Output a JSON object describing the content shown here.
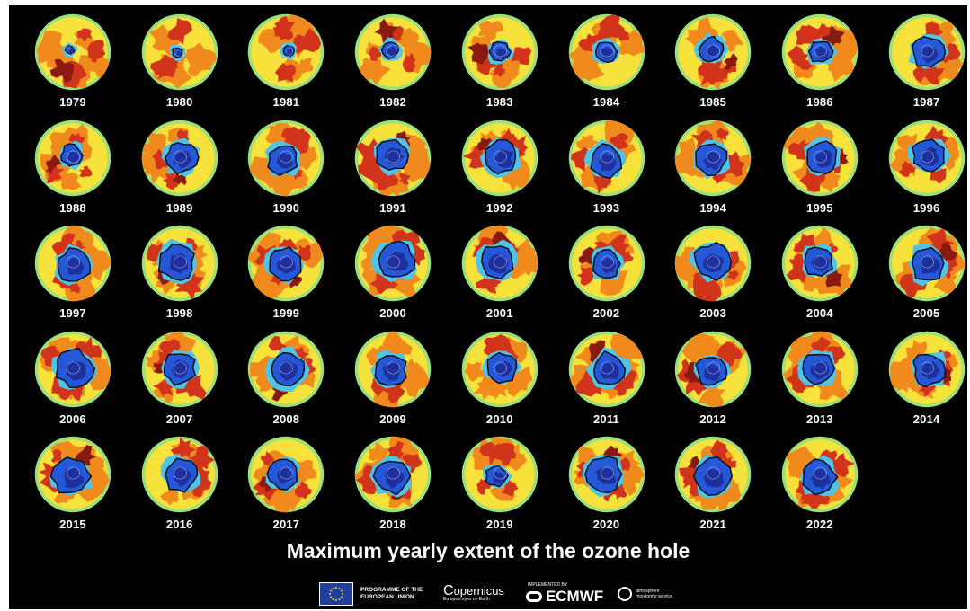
{
  "title": "Maximum yearly extent of the ozone hole",
  "maps": [
    {
      "year": "1979",
      "hole": 0.12
    },
    {
      "year": "1980",
      "hole": 0.14
    },
    {
      "year": "1981",
      "hole": 0.15
    },
    {
      "year": "1982",
      "hole": 0.24
    },
    {
      "year": "1983",
      "hole": 0.28
    },
    {
      "year": "1984",
      "hole": 0.3
    },
    {
      "year": "1985",
      "hole": 0.34
    },
    {
      "year": "1986",
      "hole": 0.32
    },
    {
      "year": "1987",
      "hole": 0.44
    },
    {
      "year": "1988",
      "hole": 0.3
    },
    {
      "year": "1989",
      "hole": 0.44
    },
    {
      "year": "1990",
      "hole": 0.42
    },
    {
      "year": "1991",
      "hole": 0.44
    },
    {
      "year": "1992",
      "hole": 0.46
    },
    {
      "year": "1993",
      "hole": 0.46
    },
    {
      "year": "1994",
      "hole": 0.44
    },
    {
      "year": "1995",
      "hole": 0.44
    },
    {
      "year": "1996",
      "hole": 0.46
    },
    {
      "year": "1997",
      "hole": 0.46
    },
    {
      "year": "1998",
      "hole": 0.5
    },
    {
      "year": "1999",
      "hole": 0.46
    },
    {
      "year": "2000",
      "hole": 0.52
    },
    {
      "year": "2001",
      "hole": 0.48
    },
    {
      "year": "2002",
      "hole": 0.4
    },
    {
      "year": "2003",
      "hole": 0.5
    },
    {
      "year": "2004",
      "hole": 0.42
    },
    {
      "year": "2005",
      "hole": 0.48
    },
    {
      "year": "2006",
      "hole": 0.52
    },
    {
      "year": "2007",
      "hole": 0.46
    },
    {
      "year": "2008",
      "hole": 0.5
    },
    {
      "year": "2009",
      "hole": 0.46
    },
    {
      "year": "2010",
      "hole": 0.42
    },
    {
      "year": "2011",
      "hole": 0.48
    },
    {
      "year": "2012",
      "hole": 0.42
    },
    {
      "year": "2013",
      "hole": 0.46
    },
    {
      "year": "2014",
      "hole": 0.46
    },
    {
      "year": "2015",
      "hole": 0.52
    },
    {
      "year": "2016",
      "hole": 0.46
    },
    {
      "year": "2017",
      "hole": 0.4
    },
    {
      "year": "2018",
      "hole": 0.48
    },
    {
      "year": "2019",
      "hole": 0.3
    },
    {
      "year": "2020",
      "hole": 0.5
    },
    {
      "year": "2021",
      "hole": 0.5
    },
    {
      "year": "2022",
      "hole": 0.48
    }
  ],
  "logos": {
    "eu_line1": "PROGRAMME OF THE",
    "eu_line2": "EUROPEAN UNION",
    "copernicus": "opernicus",
    "copernicus_sub": "Europe's eyes on Earth",
    "implemented_by": "IMPLEMENTED BY",
    "ecmwf": "ECMWF",
    "cams_line1": "atmosphere",
    "cams_line2": "monitoring service"
  },
  "colors": {
    "background": "#000000",
    "ring_outer": "#9be07a",
    "yellow": "#f6e23a",
    "orange": "#f08a1c",
    "red": "#d2331b",
    "dark_red": "#8a1a10",
    "light_blue": "#4fc3e8",
    "blue": "#2458d6",
    "dark_blue": "#1e2f9e"
  }
}
